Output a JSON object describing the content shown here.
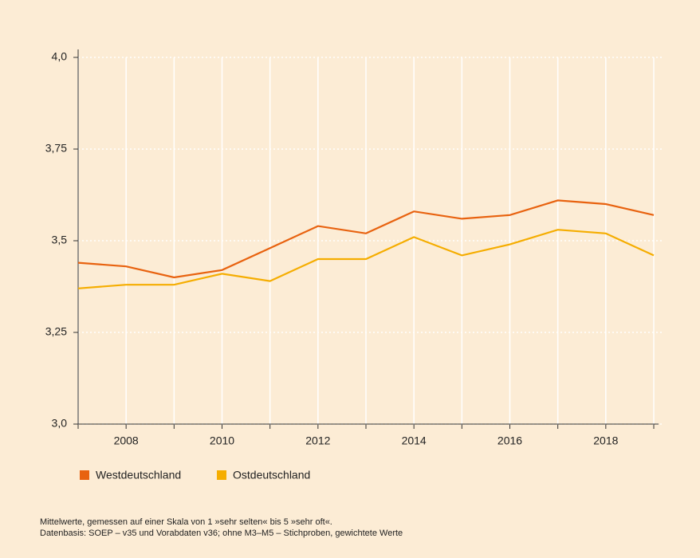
{
  "chart_data": {
    "type": "line",
    "x": [
      2007,
      2008,
      2009,
      2010,
      2011,
      2012,
      2013,
      2014,
      2015,
      2016,
      2017,
      2018,
      2019
    ],
    "series": [
      {
        "name": "Westdeutschland",
        "color": "#e8620f",
        "values": [
          3.44,
          3.43,
          3.4,
          3.42,
          3.48,
          3.54,
          3.52,
          3.58,
          3.56,
          3.57,
          3.61,
          3.6,
          3.57
        ]
      },
      {
        "name": "Ostdeutschland",
        "color": "#f5ad00",
        "values": [
          3.37,
          3.38,
          3.38,
          3.41,
          3.39,
          3.45,
          3.45,
          3.51,
          3.46,
          3.49,
          3.53,
          3.52,
          3.46
        ]
      }
    ],
    "xlim": [
      2007,
      2019
    ],
    "xticks": [
      2008,
      2010,
      2012,
      2014,
      2016,
      2018
    ],
    "ylim": [
      3.0,
      4.0
    ],
    "yticks": [
      {
        "value": 3.0,
        "label": "3,0"
      },
      {
        "value": 3.25,
        "label": "3,25"
      },
      {
        "value": 3.5,
        "label": "3,5"
      },
      {
        "value": 3.75,
        "label": "3,75"
      },
      {
        "value": 4.0,
        "label": "4,0"
      }
    ],
    "grid": true,
    "notes": [
      "Mittelwerte, gemessen auf einer Skala von 1 »sehr selten« bis 5 »sehr oft«.",
      "Datenbasis: SOEP – v35 und Vorabdaten v36; ohne M3–M5 – Stichproben, gewichtete Werte"
    ]
  }
}
